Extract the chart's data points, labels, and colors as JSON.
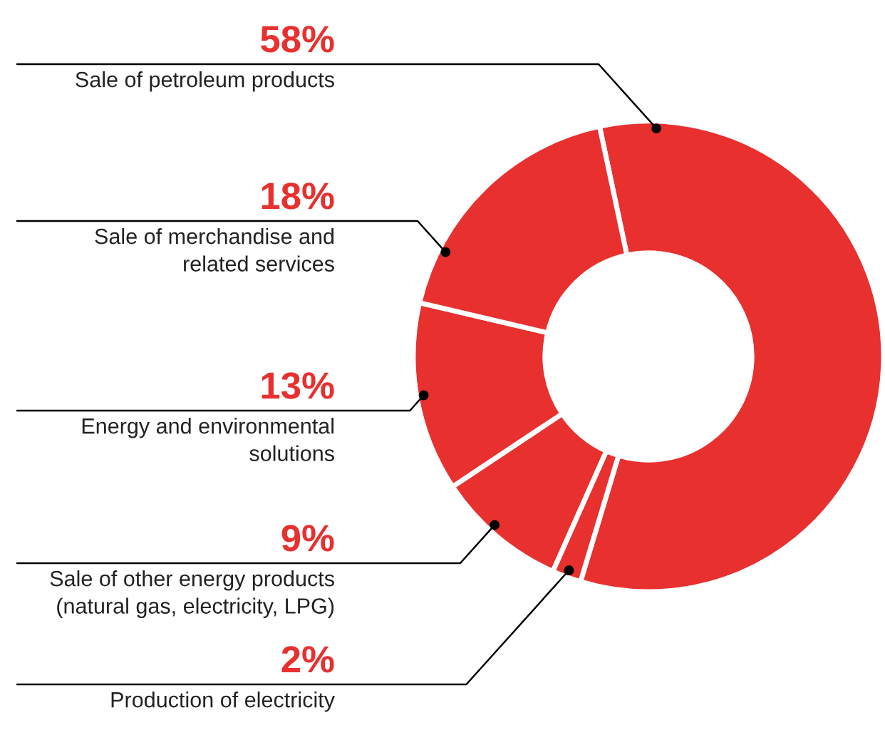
{
  "chart_data": {
    "type": "donut",
    "categories": [
      "Sale of petroleum products",
      "Production of electricity",
      "Sale of other energy products\n(natural gas, electricity, LPG)",
      "Energy and environmental\nsolutions",
      "Sale of merchandise and\nrelated services"
    ],
    "values": [
      58,
      2,
      9,
      13,
      18
    ],
    "value_labels": [
      "58%",
      "2%",
      "9%",
      "13%",
      "18%"
    ],
    "colors": [
      "#e8302f",
      "#e8302f",
      "#e8302f",
      "#e8302f",
      "#e8302f"
    ]
  }
}
